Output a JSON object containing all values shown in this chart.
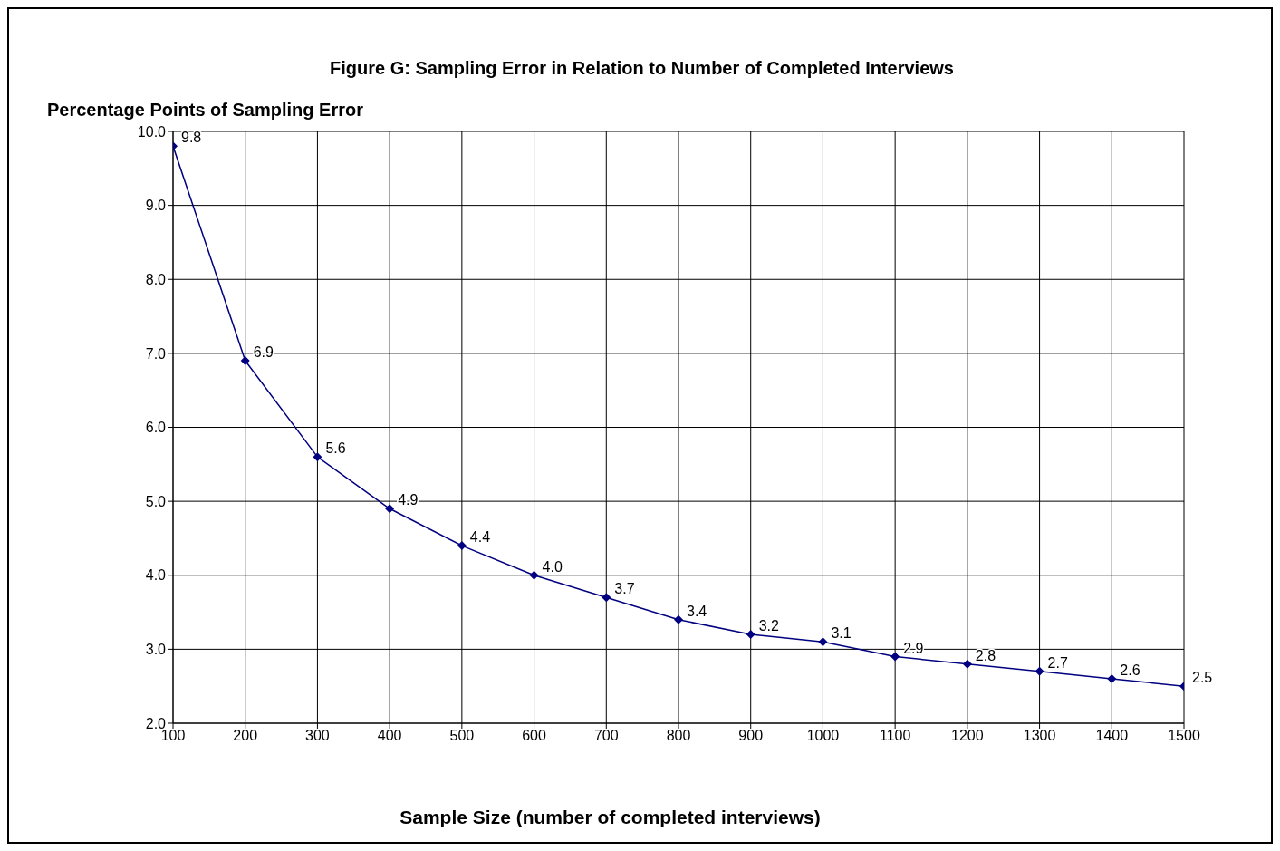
{
  "chart_data": {
    "type": "line",
    "title": "Figure G:  Sampling Error in Relation to Number of Completed Interviews",
    "xlabel": "Sample Size (number of completed interviews)",
    "ylabel": "Percentage Points of Sampling Error",
    "x": [
      100,
      200,
      300,
      400,
      500,
      600,
      700,
      800,
      900,
      1000,
      1100,
      1200,
      1300,
      1400,
      1500
    ],
    "series": [
      {
        "color": "#000080",
        "values": [
          9.8,
          6.9,
          5.6,
          4.9,
          4.4,
          4.0,
          3.7,
          3.4,
          3.2,
          3.1,
          2.9,
          2.8,
          2.7,
          2.6,
          2.5
        ],
        "value_labels": [
          "9.8",
          "6.9",
          "5.6",
          "4.9",
          "4.4",
          "4.0",
          "3.7",
          "3.4",
          "3.2",
          "3.1",
          "2.9",
          "2.8",
          "2.7",
          "2.6",
          "2.5"
        ]
      }
    ],
    "xlim": [
      100,
      1500
    ],
    "xticks": [
      100,
      200,
      300,
      400,
      500,
      600,
      700,
      800,
      900,
      1000,
      1100,
      1200,
      1300,
      1400,
      1500
    ],
    "ylim": [
      2,
      10
    ],
    "yticks": [
      {
        "value": 2,
        "label": "2.0"
      },
      {
        "value": 3,
        "label": "3.0"
      },
      {
        "value": 4,
        "label": "4.0"
      },
      {
        "value": 5,
        "label": "5.0"
      },
      {
        "value": 6,
        "label": "6.0"
      },
      {
        "value": 7,
        "label": "7.0"
      },
      {
        "value": 8,
        "label": "8.0"
      },
      {
        "value": 9,
        "label": "9.0"
      },
      {
        "value": 10,
        "label": "10.0"
      }
    ],
    "grid": true,
    "marker": "diamond",
    "line_style": "solid"
  }
}
